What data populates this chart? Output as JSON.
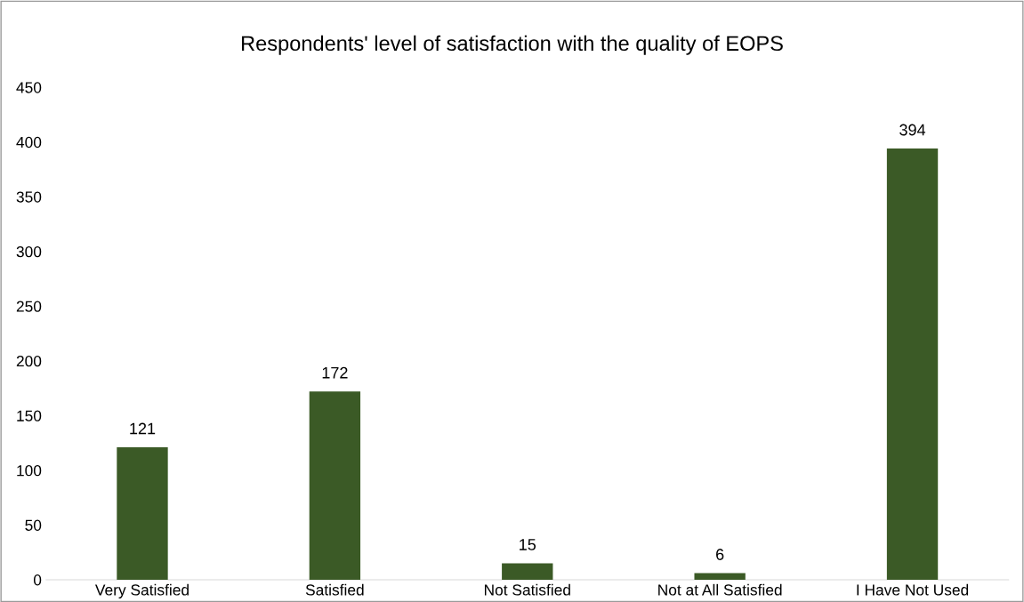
{
  "chart_data": {
    "type": "bar",
    "title": "Respondents' level of satisfaction with the quality of EOPS",
    "categories": [
      "Very Satisfied",
      "Satisfied",
      "Not Satisfied",
      "Not at All Satisfied",
      "I Have Not Used"
    ],
    "values": [
      121,
      172,
      15,
      6,
      394
    ],
    "color": "#3b5a26",
    "ylim": [
      0,
      450
    ],
    "yticks": [
      0,
      50,
      100,
      150,
      200,
      250,
      300,
      350,
      400,
      450
    ],
    "grid": false,
    "data_labels": true
  }
}
